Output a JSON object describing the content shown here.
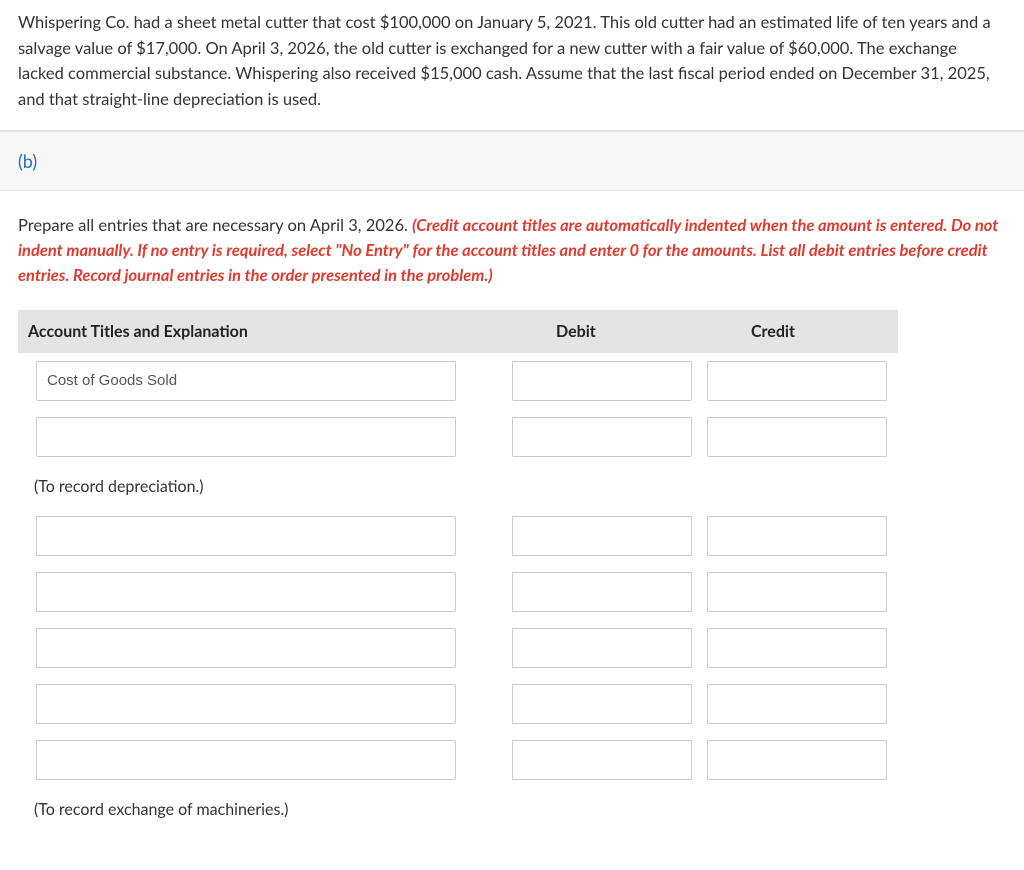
{
  "problem_text": "Whispering Co. had a sheet metal cutter that cost $100,000 on January 5, 2021. This old cutter had an estimated life of ten years and a salvage value of $17,000. On April 3, 2026, the old cutter is exchanged for a new cutter with a fair value of $60,000. The exchange lacked commercial substance. Whispering also received $15,000 cash. Assume that the last fiscal period ended on December 31, 2025, and that straight-line depreciation is used.",
  "part_label": "(b)",
  "instruction_black": "Prepare all entries that are necessary on April 3, 2026. ",
  "instruction_red": "(Credit account titles are automatically indented when the amount is entered. Do not indent manually. If no entry is required, select \"No Entry\" for the account titles and enter 0 for the amounts. List all debit entries before credit entries. Record journal entries in the order presented in the problem.)",
  "headers": {
    "account": "Account Titles and Explanation",
    "debit": "Debit",
    "credit": "Credit"
  },
  "rows": {
    "r1_account": "Cost of Goods Sold"
  },
  "notes": {
    "note1": "(To record depreciation.)",
    "note2": "(To record exchange of machineries.)"
  }
}
